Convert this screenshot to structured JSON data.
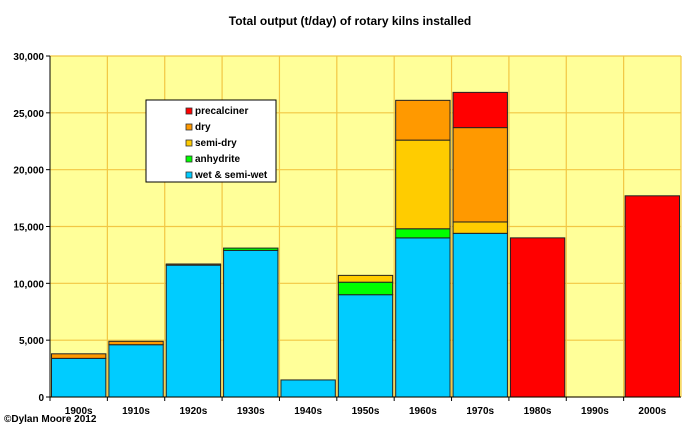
{
  "chart_data": {
    "type": "bar",
    "stacked": true,
    "title": "Total output (t/day) of rotary kilns installed",
    "xlabel": "",
    "ylabel": "",
    "ylim": [
      0,
      30000
    ],
    "yticks": [
      "0",
      "5,000",
      "10,000",
      "15,000",
      "20,000",
      "25,000",
      "30,000"
    ],
    "ytick_values": [
      0,
      5000,
      10000,
      15000,
      20000,
      25000,
      30000
    ],
    "grid": true,
    "legend_position": "top-left",
    "categories": [
      "1900s",
      "1910s",
      "1920s",
      "1930s",
      "1940s",
      "1950s",
      "1960s",
      "1970s",
      "1980s",
      "1990s",
      "2000s"
    ],
    "series": [
      {
        "name": "wet & semi-wet",
        "color": "#00CCFF",
        "values": [
          3400,
          4600,
          11600,
          12900,
          1500,
          9000,
          14000,
          14400,
          0,
          0,
          0
        ]
      },
      {
        "name": "anhydrite",
        "color": "#00FF00",
        "values": [
          0,
          0,
          0,
          200,
          0,
          1100,
          800,
          0,
          0,
          0,
          0
        ]
      },
      {
        "name": "semi-dry",
        "color": "#FFCC00",
        "values": [
          0,
          0,
          0,
          0,
          0,
          600,
          7800,
          1000,
          0,
          0,
          0
        ]
      },
      {
        "name": "dry",
        "color": "#FF9900",
        "values": [
          400,
          300,
          100,
          0,
          0,
          0,
          3500,
          8300,
          0,
          0,
          0
        ]
      },
      {
        "name": "precalciner",
        "color": "#FF0000",
        "values": [
          0,
          0,
          0,
          0,
          0,
          0,
          0,
          3100,
          14000,
          0,
          17700
        ]
      }
    ],
    "plot_background": "#FFFF99",
    "grid_color": "#F2C744"
  },
  "credit": "©Dylan Moore 2012"
}
